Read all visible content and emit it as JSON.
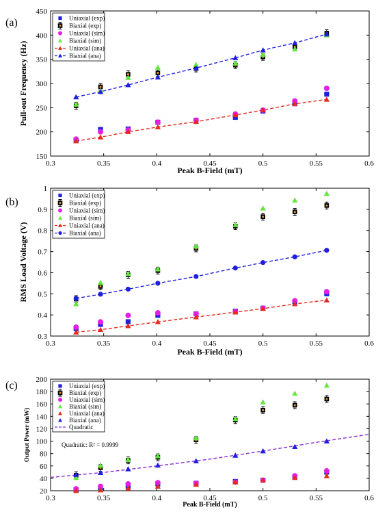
{
  "chart_data": [
    {
      "panel": "(a)",
      "type": "scatter",
      "xlabel": "Peak B-Field (mT)",
      "ylabel": "Pull-out Frequency (Hz)",
      "xlim": [
        0.3,
        0.6
      ],
      "ylim": [
        150,
        450
      ],
      "xticks": [
        "0.3",
        "0.35",
        "0.4",
        "0.45",
        "0.5",
        "0.55",
        "0.6"
      ],
      "yticks": [
        "150",
        "200",
        "250",
        "300",
        "350",
        "400",
        "450"
      ],
      "legend_position": "top-left",
      "grid": false,
      "series": [
        {
          "name": "Uniaxial (exp)",
          "marker": "square",
          "color": "#1f1fe0",
          "line": false,
          "x": [
            0.324,
            0.347,
            0.373,
            0.401,
            0.437,
            0.474,
            0.5,
            0.53,
            0.56
          ],
          "y": [
            183,
            205,
            206,
            220,
            224,
            230,
            243,
            258,
            278
          ]
        },
        {
          "name": "Biaxial (exp)",
          "marker": "errorbar",
          "color": "#000000",
          "face": "#e8951f",
          "line": false,
          "x": [
            0.324,
            0.347,
            0.373,
            0.401,
            0.437,
            0.474,
            0.5,
            0.53,
            0.56
          ],
          "y": [
            254,
            293,
            319,
            322,
            331,
            338,
            355,
            376,
            404
          ]
        },
        {
          "name": "Uniaxial (sim)",
          "marker": "diamond",
          "color": "#e51ee5",
          "line": false,
          "x": [
            0.324,
            0.347,
            0.373,
            0.401,
            0.437,
            0.474,
            0.5,
            0.53,
            0.56
          ],
          "y": [
            185,
            200,
            204,
            220,
            224,
            237,
            245,
            264,
            290
          ]
        },
        {
          "name": "Biaxial (sim)",
          "marker": "triangle",
          "color": "#5fea3b",
          "line": false,
          "x": [
            0.324,
            0.347,
            0.373,
            0.401,
            0.437,
            0.474,
            0.5,
            0.53,
            0.56
          ],
          "y": [
            257,
            285,
            312,
            333,
            339,
            342,
            360,
            371,
            400
          ]
        },
        {
          "name": "Uniaxial (ana)",
          "marker": "triangle",
          "color": "#e52a1e",
          "line": true,
          "x": [
            0.324,
            0.347,
            0.373,
            0.401,
            0.437,
            0.474,
            0.5,
            0.53,
            0.56
          ],
          "y": [
            181,
            189,
            200,
            210,
            221,
            235,
            245,
            258,
            267
          ]
        },
        {
          "name": "Biaxial (ana)",
          "marker": "triangle",
          "color": "#1f1fe0",
          "line": true,
          "x": [
            0.324,
            0.347,
            0.373,
            0.401,
            0.437,
            0.474,
            0.5,
            0.53,
            0.56
          ],
          "y": [
            272,
            283,
            297,
            313,
            332,
            353,
            369,
            384,
            402
          ]
        }
      ]
    },
    {
      "panel": "(b)",
      "type": "scatter",
      "xlabel": "Peak B-Field (mT)",
      "ylabel": "RMS Load Voltage (V)",
      "xlim": [
        0.3,
        0.6
      ],
      "ylim": [
        0.3,
        1.0
      ],
      "xticks": [
        "0.3",
        "0.35",
        "0.4",
        "0.45",
        "0.5",
        "0.55",
        "0.6"
      ],
      "yticks": [
        "0.3",
        "0.4",
        "0.5",
        "0.6",
        "0.7",
        "0.8",
        "0.9",
        "1"
      ],
      "legend_position": "top-left",
      "grid": false,
      "series": [
        {
          "name": "Uniaxial (exp)",
          "marker": "square",
          "color": "#1f1fe0",
          "line": false,
          "x": [
            0.324,
            0.347,
            0.373,
            0.401,
            0.437,
            0.474,
            0.5,
            0.53,
            0.56
          ],
          "y": [
            0.335,
            0.355,
            0.368,
            0.398,
            0.405,
            0.418,
            0.432,
            0.462,
            0.5
          ]
        },
        {
          "name": "Biaxial (exp)",
          "marker": "errorbar",
          "color": "#000000",
          "face": "#e8951f",
          "line": false,
          "x": [
            0.324,
            0.347,
            0.373,
            0.401,
            0.437,
            0.474,
            0.5,
            0.53,
            0.56
          ],
          "y": [
            0.475,
            0.535,
            0.59,
            0.61,
            0.715,
            0.82,
            0.865,
            0.888,
            0.918
          ]
        },
        {
          "name": "Uniaxial (sim)",
          "marker": "diamond",
          "color": "#e51ee5",
          "line": false,
          "x": [
            0.324,
            0.347,
            0.373,
            0.401,
            0.437,
            0.474,
            0.5,
            0.53,
            0.56
          ],
          "y": [
            0.342,
            0.367,
            0.398,
            0.41,
            0.405,
            0.416,
            0.432,
            0.467,
            0.51
          ]
        },
        {
          "name": "Biaxial (sim)",
          "marker": "triangle",
          "color": "#5fea3b",
          "line": false,
          "x": [
            0.324,
            0.347,
            0.373,
            0.401,
            0.437,
            0.474,
            0.5,
            0.53,
            0.56
          ],
          "y": [
            0.452,
            0.553,
            0.595,
            0.617,
            0.725,
            0.827,
            0.905,
            0.943,
            0.975
          ]
        },
        {
          "name": "Uniaxial (ana)",
          "marker": "triangle",
          "color": "#e52a1e",
          "line": true,
          "x": [
            0.324,
            0.347,
            0.373,
            0.401,
            0.437,
            0.474,
            0.5,
            0.53,
            0.56
          ],
          "y": [
            0.318,
            0.33,
            0.348,
            0.367,
            0.39,
            0.413,
            0.43,
            0.452,
            0.47
          ]
        },
        {
          "name": "Biaxial (ana)",
          "marker": "circle",
          "color": "#1f1fe0",
          "line": true,
          "x": [
            0.324,
            0.347,
            0.373,
            0.401,
            0.437,
            0.474,
            0.5,
            0.53,
            0.56
          ],
          "y": [
            0.478,
            0.498,
            0.522,
            0.55,
            0.582,
            0.622,
            0.648,
            0.675,
            0.706
          ]
        }
      ]
    },
    {
      "panel": "(c)",
      "type": "scatter",
      "xlabel": "Peak B-Field (mT)",
      "ylabel": "Output Power (mW)",
      "xlim": [
        0.3,
        0.6
      ],
      "ylim": [
        20,
        200
      ],
      "xticks": [
        "0.3",
        "0.35",
        "0.4",
        "0.45",
        "0.5",
        "0.55",
        "0.6"
      ],
      "yticks": [
        "20",
        "40",
        "60",
        "80",
        "100",
        "120",
        "140",
        "160",
        "180",
        "200"
      ],
      "legend_position": "top-left",
      "grid": false,
      "annotation": "Quadratic: R² = 0.9999",
      "series": [
        {
          "name": "Uniaxial (exp)",
          "marker": "square",
          "color": "#1f1fe0",
          "line": false,
          "x": [
            0.324,
            0.347,
            0.373,
            0.401,
            0.437,
            0.474,
            0.5,
            0.53,
            0.56
          ],
          "y": [
            22,
            25,
            27,
            31,
            32,
            35,
            37,
            43,
            50
          ]
        },
        {
          "name": "Biaxial (exp)",
          "marker": "errorbar",
          "color": "#000000",
          "face": "#e8951f",
          "line": false,
          "x": [
            0.324,
            0.347,
            0.373,
            0.401,
            0.437,
            0.474,
            0.5,
            0.53,
            0.56
          ],
          "y": [
            45,
            57,
            69,
            74,
            102,
            134,
            150,
            158,
            168
          ]
        },
        {
          "name": "Uniaxial (sim)",
          "marker": "diamond",
          "color": "#e51ee5",
          "line": false,
          "x": [
            0.324,
            0.347,
            0.373,
            0.401,
            0.437,
            0.474,
            0.5,
            0.53,
            0.56
          ],
          "y": [
            23,
            27,
            31,
            33,
            32,
            34,
            37,
            44,
            52
          ]
        },
        {
          "name": "Biaxial (sim)",
          "marker": "triangle",
          "color": "#5fea3b",
          "line": false,
          "x": [
            0.324,
            0.347,
            0.373,
            0.401,
            0.437,
            0.474,
            0.5,
            0.53,
            0.56
          ],
          "y": [
            41,
            61,
            70,
            76,
            105,
            136,
            163,
            177,
            190
          ]
        },
        {
          "name": "Uniaxial (ana)",
          "marker": "triangle",
          "color": "#e52a1e",
          "line": false,
          "x": [
            0.324,
            0.347,
            0.373,
            0.401,
            0.437,
            0.474,
            0.5,
            0.53,
            0.56
          ],
          "y": [
            20,
            21,
            24,
            27,
            30,
            34,
            37,
            41,
            44
          ]
        },
        {
          "name": "Biaxial (ana)",
          "marker": "triangle",
          "color": "#1f1fe0",
          "line": false,
          "x": [
            0.324,
            0.347,
            0.373,
            0.401,
            0.437,
            0.474,
            0.5,
            0.53,
            0.56
          ],
          "y": [
            46,
            49,
            55,
            61,
            68,
            77,
            84,
            91,
            100
          ]
        },
        {
          "name": "Quadratic",
          "marker": "none",
          "color": "#8a2bd6",
          "line": true,
          "dashed": true,
          "x": [
            0.3,
            0.35,
            0.4,
            0.45,
            0.5,
            0.55,
            0.6
          ],
          "y": [
            41.5,
            49.5,
            60,
            71,
            84,
            98,
            111
          ]
        }
      ]
    }
  ]
}
